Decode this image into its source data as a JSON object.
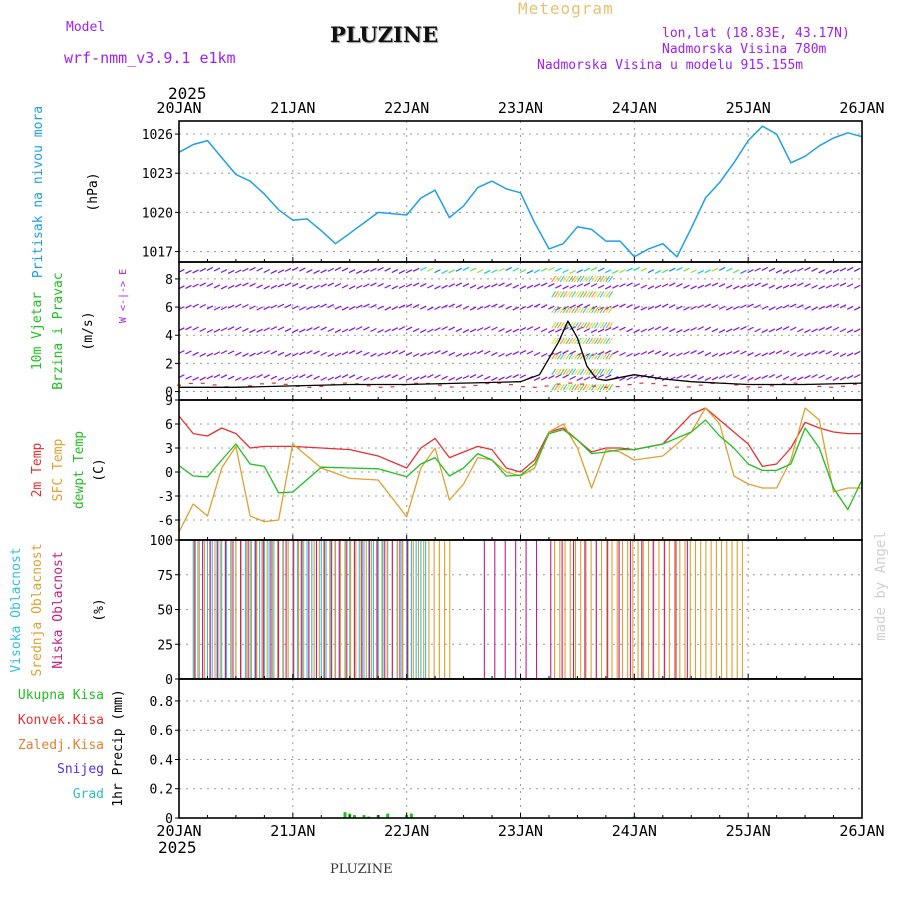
{
  "header": {
    "model_label": "Model",
    "model_name": "wrf-nmm_v3.9.1 e1km",
    "title": "PLUZINE",
    "subtitle": "Meteogram",
    "lonlat": "lon,lat (18.83E, 43.17N)",
    "elevation": "Nadmorska Visina 780m",
    "model_elevation": "Nadmorska Visina u modelu 915.155m",
    "year_top": "2025",
    "year_bottom": "2025",
    "footer_station": "PLUZINE",
    "credit": "made by Angel"
  },
  "colors": {
    "pressure": "#1e9fe8",
    "temp2m": "#e83030",
    "sfc": "#e0a030",
    "dewpt": "#20c020",
    "high_cloud": "#30c0e0",
    "mid_cloud": "#e0a030",
    "low_cloud": "#c0208a",
    "wind_label": "#20c020",
    "header_violet": "#a020f0",
    "subtitle": "#e8c070"
  },
  "chart_data": [
    {
      "type": "line",
      "panel": "pressure",
      "ylabel_rot": "Pritisak na nivou mora",
      "unit": "(hPa)",
      "x_ticks": [
        "20JAN",
        "21JAN",
        "22JAN",
        "23JAN",
        "24JAN",
        "25JAN",
        "26JAN"
      ],
      "ylim": [
        1016.2,
        1027.0
      ],
      "y_ticks": [
        1017,
        1020,
        1023,
        1026
      ],
      "x_hours": [
        0,
        3,
        6,
        9,
        12,
        15,
        18,
        21,
        24,
        27,
        30,
        33,
        36,
        42,
        48,
        51,
        54,
        57,
        60,
        63,
        66,
        69,
        72,
        75,
        78,
        81,
        84,
        87,
        90,
        93,
        96,
        99,
        102,
        105,
        108,
        111,
        114,
        117,
        120,
        123,
        126,
        129,
        132,
        135,
        138,
        141,
        144
      ],
      "series": [
        {
          "name": "Pritisak na nivou mora",
          "values": [
            1024.6,
            1025.2,
            1025.5,
            1024.2,
            1022.9,
            1022.4,
            1021.4,
            1020.2,
            1019.4,
            1019.5,
            1018.6,
            1017.6,
            1018.4,
            1020.0,
            1019.8,
            1021.1,
            1021.7,
            1019.6,
            1020.5,
            1021.9,
            1022.4,
            1021.8,
            1021.5,
            1019.2,
            1017.2,
            1017.6,
            1018.9,
            1018.7,
            1017.8,
            1017.8,
            1016.6,
            1017.2,
            1017.6,
            1016.6,
            1018.8,
            1021.1,
            1022.3,
            1023.8,
            1025.5,
            1026.6,
            1026.0,
            1023.8,
            1024.3,
            1025.1,
            1025.7,
            1026.1,
            1025.8
          ]
        }
      ]
    },
    {
      "type": "line",
      "panel": "wind",
      "ylabel_rot": [
        "10m Vjetar",
        "Brzina i Pravac"
      ],
      "unit": "(m/s)",
      "compass": "W <-|-> E",
      "ylim": [
        -0.6,
        9.2
      ],
      "y_ticks": [
        0,
        2,
        4,
        6,
        8
      ],
      "x_hours": [
        0,
        12,
        24,
        36,
        48,
        60,
        72,
        76,
        80,
        82,
        84,
        86,
        88,
        90,
        96,
        102,
        108,
        114,
        120,
        132,
        144
      ],
      "series": [
        {
          "name": "10m Vjetar Brzina",
          "values": [
            0.3,
            0.3,
            0.4,
            0.5,
            0.5,
            0.6,
            0.7,
            1.2,
            3.5,
            5.0,
            3.8,
            1.8,
            0.9,
            0.8,
            1.2,
            0.9,
            0.7,
            0.6,
            0.5,
            0.5,
            0.6
          ]
        }
      ]
    },
    {
      "type": "line",
      "panel": "temperature",
      "ylabel_rot": [
        "2m Temp",
        "SFC Temp",
        "dewpt Temp"
      ],
      "unit": "(C)",
      "ylim": [
        -8.5,
        9
      ],
      "y_ticks": [
        -6,
        -3,
        0,
        3,
        6,
        9
      ],
      "x_hours": [
        0,
        3,
        6,
        9,
        12,
        15,
        18,
        21,
        24,
        30,
        36,
        42,
        48,
        51,
        54,
        57,
        60,
        63,
        66,
        69,
        72,
        75,
        78,
        81,
        84,
        87,
        90,
        93,
        96,
        102,
        108,
        111,
        114,
        117,
        120,
        123,
        126,
        129,
        132,
        135,
        138,
        141,
        144
      ],
      "series": [
        {
          "name": "2m Temp",
          "values": [
            7.0,
            4.8,
            4.5,
            5.5,
            4.8,
            3.0,
            3.2,
            3.2,
            3.2,
            3.0,
            2.8,
            2.0,
            0.5,
            3.0,
            4.2,
            1.8,
            2.5,
            3.2,
            2.8,
            0.5,
            0.0,
            1.5,
            5.0,
            5.5,
            4.0,
            2.5,
            3.0,
            3.0,
            2.8,
            3.5,
            7.2,
            8.0,
            6.5,
            5.0,
            3.5,
            0.7,
            1.0,
            3.0,
            6.2,
            5.5,
            5.0,
            4.8,
            4.8
          ]
        },
        {
          "name": "SFC Temp",
          "values": [
            -7.5,
            -4.0,
            -5.5,
            0.5,
            3.2,
            -5.5,
            -6.2,
            -6.0,
            3.5,
            0.5,
            -0.8,
            -1.0,
            -5.6,
            0.5,
            3.0,
            -3.5,
            -1.5,
            1.8,
            1.5,
            0.0,
            -0.5,
            0.5,
            5.0,
            6.0,
            3.0,
            -2.0,
            2.8,
            2.5,
            1.5,
            2.0,
            5.0,
            8.0,
            6.0,
            -0.5,
            -1.5,
            -2.0,
            -2.0,
            1.5,
            8.0,
            6.5,
            -2.5,
            -2.0,
            -2.0
          ]
        },
        {
          "name": "dewpt Temp",
          "values": [
            0.8,
            -0.5,
            -0.6,
            1.5,
            3.5,
            1.0,
            0.7,
            -2.6,
            -2.5,
            0.6,
            0.5,
            0.4,
            -0.6,
            1.0,
            1.8,
            -0.5,
            0.5,
            2.3,
            1.5,
            -0.5,
            -0.4,
            1.0,
            4.8,
            5.3,
            4.0,
            2.3,
            2.5,
            2.8,
            2.8,
            3.5,
            5.0,
            6.5,
            4.5,
            3.0,
            1.0,
            0.2,
            0.2,
            1.0,
            5.5,
            3.0,
            -2.0,
            -4.7,
            -1.0
          ]
        }
      ]
    },
    {
      "type": "bar",
      "panel": "cloud",
      "ylabel_rot": [
        "Visoka Oblacnost",
        "Srednja Oblacnost",
        "Niska Oblacnost"
      ],
      "unit": "(%)",
      "ylim": [
        0,
        100
      ],
      "y_ticks": [
        0,
        25,
        50,
        75,
        100
      ],
      "series": [
        {
          "name": "Visoka Oblacnost",
          "segments": [
            [
              3,
              52,
              1.0,
              100
            ]
          ]
        },
        {
          "name": "Srednja Oblacnost",
          "segments": [
            [
              3,
              57,
              1.1,
              100
            ],
            [
              79,
              119,
              1.1,
              100
            ]
          ]
        },
        {
          "name": "Niska Oblacnost",
          "segments": [
            [
              3,
              49,
              1.6,
              100
            ],
            [
              64,
              77,
              2.2,
              100
            ],
            [
              78,
              108,
              2.4,
              100
            ]
          ]
        }
      ]
    },
    {
      "type": "bar",
      "panel": "precip",
      "ylabel_rot": "1hr Precip (mm)",
      "legend": [
        "Ukupna Kisa",
        "Konvek.Kisa",
        "Zaledj.Kisa",
        "Snijeg",
        "Grad"
      ],
      "legend_colors": [
        "#20c020",
        "#e83030",
        "#e88030",
        "#5030e0",
        "#30c0b0"
      ],
      "x_ticks": [
        "20JAN",
        "21JAN",
        "22JAN",
        "23JAN",
        "24JAN",
        "25JAN",
        "26JAN"
      ],
      "ylim": [
        0,
        0.95
      ],
      "y_ticks": [
        0,
        0.2,
        0.4,
        0.6,
        0.8
      ],
      "x_hours": [
        35,
        36,
        37,
        39,
        40,
        42,
        44,
        48,
        49,
        96
      ],
      "values": [
        0.04,
        0.03,
        0.02,
        0.02,
        0.01,
        0.02,
        0.03,
        0.02,
        0.03,
        0.01
      ]
    }
  ]
}
